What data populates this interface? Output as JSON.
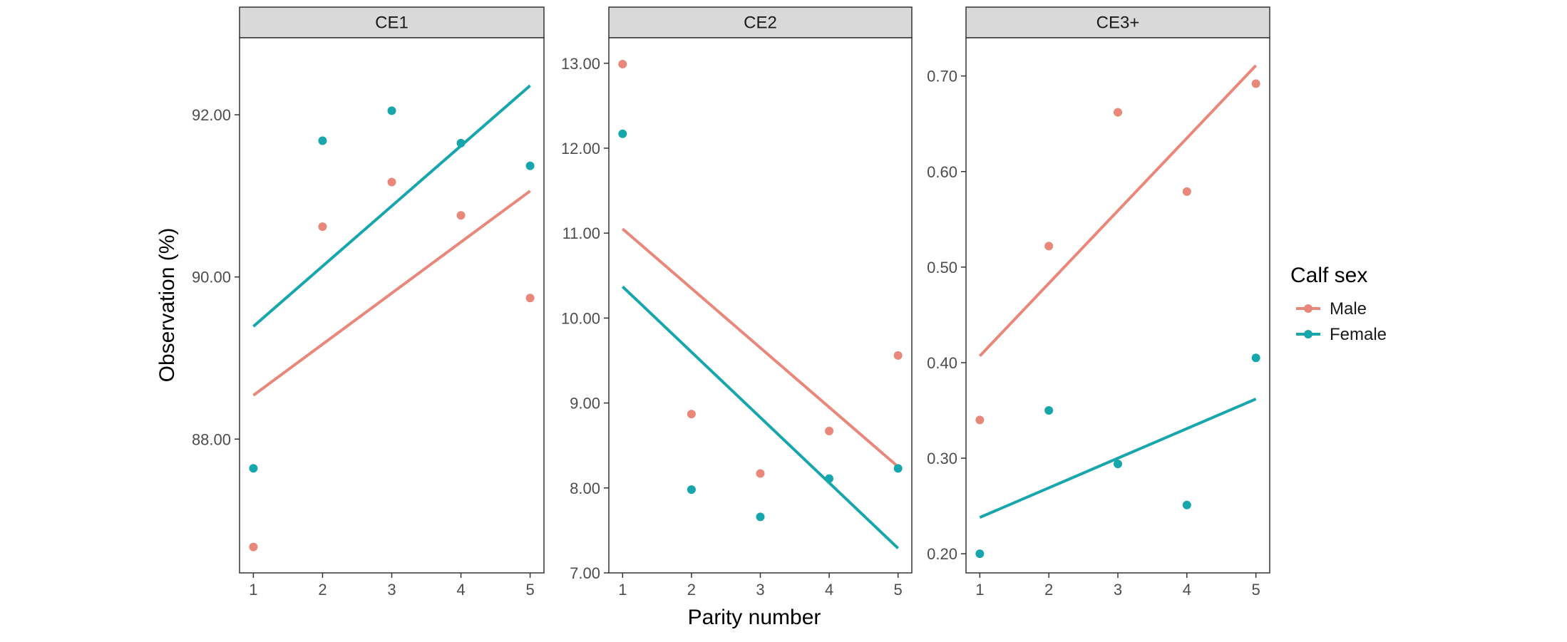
{
  "chart_data": {
    "type": "scatter",
    "xlabel": "Parity number",
    "ylabel": "Observation (%)",
    "legend": {
      "title": "Calf sex",
      "placement": "right",
      "entries": [
        {
          "name": "Male",
          "color": "#E8877A"
        },
        {
          "name": "Female",
          "color": "#17A6AC"
        }
      ]
    },
    "x_ticks": [
      1,
      2,
      3,
      4,
      5
    ],
    "x_range": [
      0.8,
      5.2
    ],
    "grid": false,
    "panels": [
      {
        "title": "CE1",
        "ylim": [
          86.35,
          92.95
        ],
        "y_ticks": [
          88,
          90,
          92
        ],
        "y_tick_labels": [
          "88.00",
          "90.00",
          "92.00"
        ],
        "series": [
          {
            "name": "Male",
            "color": "#E8877A",
            "points": [
              [
                1,
                86.67
              ],
              [
                2,
                90.62
              ],
              [
                3,
                91.17
              ],
              [
                4,
                90.76
              ],
              [
                5,
                89.74
              ]
            ],
            "fit": [
              [
                1,
                88.54
              ],
              [
                5,
                91.06
              ]
            ]
          },
          {
            "name": "Female",
            "color": "#17A6AC",
            "points": [
              [
                1,
                87.64
              ],
              [
                2,
                91.68
              ],
              [
                3,
                92.05
              ],
              [
                4,
                91.65
              ],
              [
                5,
                91.37
              ]
            ],
            "fit": [
              [
                1,
                89.39
              ],
              [
                5,
                92.36
              ]
            ]
          }
        ]
      },
      {
        "title": "CE2",
        "ylim": [
          7.0,
          13.3
        ],
        "y_ticks": [
          7,
          8,
          9,
          10,
          11,
          12,
          13
        ],
        "y_tick_labels": [
          "7.00",
          "8.00",
          "9.00",
          "10.00",
          "11.00",
          "12.00",
          "13.00"
        ],
        "series": [
          {
            "name": "Male",
            "color": "#E8877A",
            "points": [
              [
                1,
                12.99
              ],
              [
                2,
                8.87
              ],
              [
                3,
                8.17
              ],
              [
                4,
                8.67
              ],
              [
                5,
                9.56
              ]
            ],
            "fit": [
              [
                1,
                11.05
              ],
              [
                5,
                8.25
              ]
            ]
          },
          {
            "name": "Female",
            "color": "#17A6AC",
            "points": [
              [
                1,
                12.17
              ],
              [
                2,
                7.98
              ],
              [
                3,
                7.66
              ],
              [
                4,
                8.11
              ],
              [
                5,
                8.23
              ]
            ],
            "fit": [
              [
                1,
                10.37
              ],
              [
                5,
                7.29
              ]
            ]
          }
        ]
      },
      {
        "title": "CE3+",
        "ylim": [
          0.18,
          0.74
        ],
        "y_ticks": [
          0.2,
          0.3,
          0.4,
          0.5,
          0.6,
          0.7
        ],
        "y_tick_labels": [
          "0.20",
          "0.30",
          "0.40",
          "0.50",
          "0.60",
          "0.70"
        ],
        "series": [
          {
            "name": "Male",
            "color": "#E8877A",
            "points": [
              [
                1,
                0.34
              ],
              [
                2,
                0.522
              ],
              [
                3,
                0.662
              ],
              [
                4,
                0.579
              ],
              [
                5,
                0.692
              ]
            ],
            "fit": [
              [
                1,
                0.407
              ],
              [
                5,
                0.711
              ]
            ]
          },
          {
            "name": "Female",
            "color": "#17A6AC",
            "points": [
              [
                1,
                0.2
              ],
              [
                2,
                0.35
              ],
              [
                3,
                0.294
              ],
              [
                4,
                0.251
              ],
              [
                5,
                0.405
              ]
            ],
            "fit": [
              [
                1,
                0.238
              ],
              [
                5,
                0.362
              ]
            ]
          }
        ]
      }
    ]
  }
}
